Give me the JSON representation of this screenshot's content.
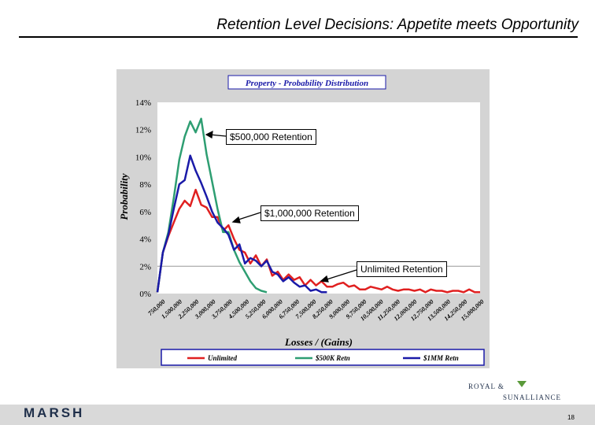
{
  "slide": {
    "title": "Retention Level Decisions:  Appetite meets Opportunity",
    "footer_logo": "MARSH",
    "page_number": "18",
    "partner_logo_line1": "ROYAL &",
    "partner_logo_line2": "SUNALLIANCE"
  },
  "callouts": {
    "c500k": "$500,000 Retention",
    "c1mm": "$1,000,000 Retention",
    "unlimited": "Unlimited Retention"
  },
  "colors": {
    "unlimited": "#e02020",
    "c500k": "#2e9e72",
    "c1mm": "#1a1aa8",
    "panel": "#d4d4d4",
    "plot_bg": "#ffffff",
    "legend_border": "#1a1aa8",
    "grid": "#999999"
  },
  "chart_data": {
    "type": "line",
    "title": "Property - Probability Distribution",
    "xlabel": "Losses / (Gains)",
    "ylabel": "Probability",
    "ylim": [
      0,
      14
    ],
    "yticks": [
      "0%",
      "2%",
      "4%",
      "6%",
      "8%",
      "10%",
      "12%",
      "14%"
    ],
    "grid": "horizontal line at 2%",
    "legend_position": "bottom",
    "xtick_labels": [
      "750,000",
      "1,500,000",
      "2,250,000",
      "3,000,000",
      "3,750,000",
      "4,500,000",
      "5,250,000",
      "6,000,000",
      "6,750,000",
      "7,500,000",
      "8,250,000",
      "9,000,000",
      "9,750,000",
      "10,500,000",
      "11,250,000",
      "12,000,000",
      "12,750,000",
      "13,500,000",
      "14,250,000",
      "15,000,000"
    ],
    "series": [
      {
        "name": "Unlimited",
        "color_key": "unlimited",
        "values": [
          0.1,
          3.0,
          4.2,
          5.2,
          6.2,
          6.8,
          6.4,
          7.6,
          6.5,
          6.3,
          5.6,
          5.6,
          4.6,
          5.0,
          4.0,
          3.2,
          3.0,
          2.2,
          2.8,
          2.0,
          2.5,
          1.3,
          1.6,
          1.0,
          1.4,
          1.0,
          1.2,
          0.6,
          1.0,
          0.6,
          0.9,
          0.5,
          0.5,
          0.7,
          0.8,
          0.5,
          0.6,
          0.3,
          0.3,
          0.5,
          0.4,
          0.3,
          0.5,
          0.3,
          0.2,
          0.3,
          0.3,
          0.2,
          0.3,
          0.1,
          0.3,
          0.2,
          0.2,
          0.1,
          0.2,
          0.2,
          0.1,
          0.3,
          0.1,
          0.1
        ]
      },
      {
        "name": "$500K Retn",
        "color_key": "c500k",
        "values": [
          0.1,
          3.0,
          4.5,
          7.0,
          9.8,
          11.5,
          12.6,
          11.8,
          12.8,
          10.2,
          8.2,
          6.2,
          4.5,
          4.5,
          3.2,
          2.3,
          1.6,
          0.9,
          0.4,
          0.2,
          0.1
        ]
      },
      {
        "name": "$1MM Retn",
        "color_key": "c1mm",
        "values": [
          0.1,
          3.0,
          4.3,
          6.2,
          8.0,
          8.3,
          10.1,
          9.0,
          8.1,
          7.1,
          6.0,
          5.2,
          4.8,
          4.3,
          3.2,
          3.6,
          2.2,
          2.6,
          2.4,
          2.0,
          2.4,
          1.6,
          1.4,
          0.9,
          1.2,
          0.8,
          0.5,
          0.6,
          0.2,
          0.3,
          0.1,
          0.1
        ]
      }
    ]
  }
}
